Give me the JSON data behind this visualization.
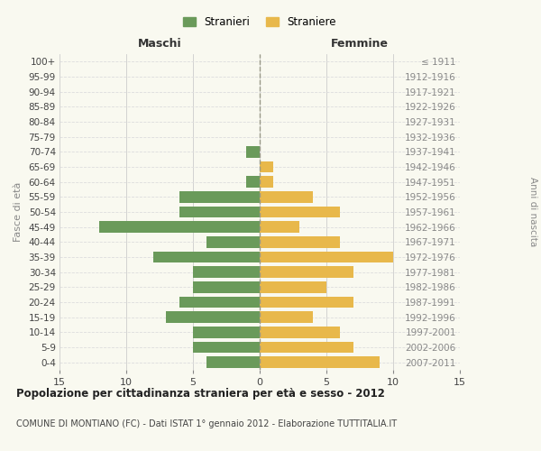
{
  "age_groups": [
    "100+",
    "95-99",
    "90-94",
    "85-89",
    "80-84",
    "75-79",
    "70-74",
    "65-69",
    "60-64",
    "55-59",
    "50-54",
    "45-49",
    "40-44",
    "35-39",
    "30-34",
    "25-29",
    "20-24",
    "15-19",
    "10-14",
    "5-9",
    "0-4"
  ],
  "birth_years": [
    "≤ 1911",
    "1912-1916",
    "1917-1921",
    "1922-1926",
    "1927-1931",
    "1932-1936",
    "1937-1941",
    "1942-1946",
    "1947-1951",
    "1952-1956",
    "1957-1961",
    "1962-1966",
    "1967-1971",
    "1972-1976",
    "1977-1981",
    "1982-1986",
    "1987-1991",
    "1992-1996",
    "1997-2001",
    "2002-2006",
    "2007-2011"
  ],
  "males": [
    0,
    0,
    0,
    0,
    0,
    0,
    1,
    0,
    1,
    6,
    6,
    12,
    4,
    8,
    5,
    5,
    6,
    7,
    5,
    5,
    4
  ],
  "females": [
    0,
    0,
    0,
    0,
    0,
    0,
    0,
    1,
    1,
    4,
    6,
    3,
    6,
    10,
    7,
    5,
    7,
    4,
    6,
    7,
    9
  ],
  "male_color": "#6a9a5a",
  "female_color": "#e8b84b",
  "male_label": "Stranieri",
  "female_label": "Straniere",
  "xlim": 15,
  "title": "Popolazione per cittadinanza straniera per età e sesso - 2012",
  "subtitle": "COMUNE DI MONTIANO (FC) - Dati ISTAT 1° gennaio 2012 - Elaborazione TUTTITALIA.IT",
  "ylabel_left": "Fasce di età",
  "ylabel_right": "Anni di nascita",
  "xlabel_maschi": "Maschi",
  "xlabel_femmine": "Femmine",
  "background_color": "#f9f9f0",
  "grid_color": "#cccccc",
  "grid_color_h": "#dddddd"
}
